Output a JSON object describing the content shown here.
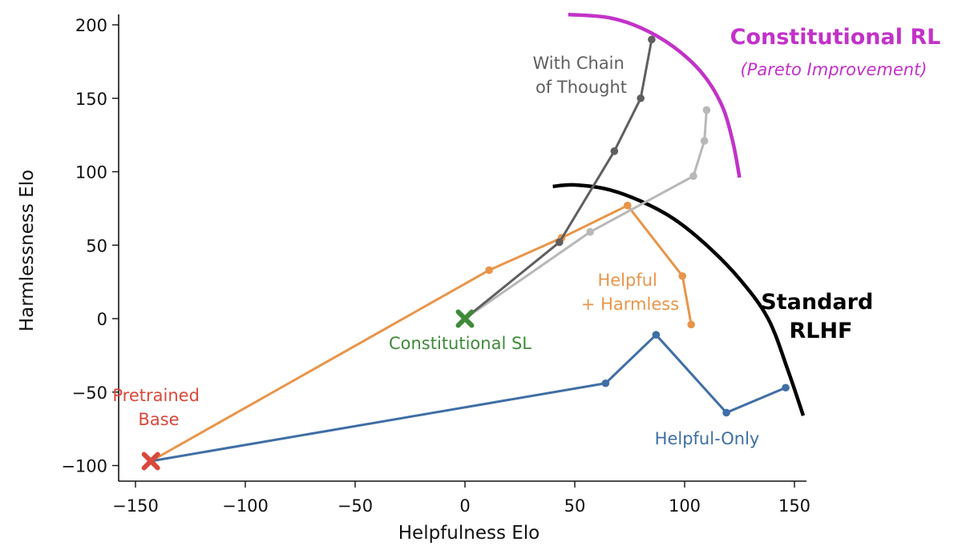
{
  "chart_data": {
    "type": "line",
    "xlabel": "Helpfulness Elo",
    "ylabel": "Harmlessness Elo",
    "xlim": [
      -158,
      158
    ],
    "ylim": [
      -110,
      205
    ],
    "x_ticks": [
      -150,
      -100,
      -50,
      0,
      50,
      100,
      150
    ],
    "y_ticks": [
      -100,
      -50,
      0,
      50,
      100,
      150,
      200
    ],
    "x_tick_labels": [
      "−150",
      "−100",
      "−50",
      "0",
      "50",
      "100",
      "150"
    ],
    "y_tick_labels": [
      "−100",
      "−50",
      "0",
      "50",
      "100",
      "150",
      "200"
    ],
    "grid": false,
    "series": [
      {
        "key": "helpful_only",
        "name": "Helpful-Only",
        "color": "#3f6ea5",
        "points": [
          [
            -143,
            -97
          ],
          [
            64,
            -44
          ],
          [
            87,
            -11
          ],
          [
            119,
            -64
          ],
          [
            146,
            -47
          ]
        ]
      },
      {
        "key": "helpful_harmless",
        "name": "Helpful\n+ Harmless",
        "color": "#e8954a",
        "points": [
          [
            -143,
            -97
          ],
          [
            11,
            33
          ],
          [
            44,
            55
          ],
          [
            74,
            77
          ],
          [
            99,
            29
          ],
          [
            103,
            -4
          ]
        ]
      },
      {
        "key": "constitutional_rl",
        "name": "",
        "color": "#b8b8b8",
        "points": [
          [
            0,
            0
          ],
          [
            57,
            59
          ],
          [
            104,
            97
          ],
          [
            109,
            121
          ],
          [
            110,
            142
          ]
        ]
      },
      {
        "key": "chain_of_thought",
        "name": "With Chain\nof Thought",
        "color": "#5f5f5f",
        "points": [
          [
            0,
            0
          ],
          [
            43,
            52
          ],
          [
            68,
            114
          ],
          [
            80,
            150
          ],
          [
            85,
            190
          ]
        ]
      }
    ],
    "markers": [
      {
        "name": "Pretrained\nBase",
        "x": -143,
        "y": -97,
        "color": "#d9483b"
      },
      {
        "name": "Constitutional SL",
        "x": 0,
        "y": 0,
        "color": "#3f8a3a"
      }
    ],
    "frontiers": [
      {
        "name": "Standard\nRLHF",
        "color": "#000000",
        "points": [
          [
            40,
            90
          ],
          [
            50,
            91
          ],
          [
            65,
            88
          ],
          [
            80,
            80
          ],
          [
            95,
            68
          ],
          [
            110,
            50
          ],
          [
            125,
            27
          ],
          [
            138,
            0
          ],
          [
            147,
            -35
          ],
          [
            154,
            -66
          ]
        ]
      },
      {
        "name": "Constitutional RL",
        "subtitle": "(Pareto Improvement)",
        "color": "#c232c8",
        "points": [
          [
            47,
            207
          ],
          [
            65,
            205
          ],
          [
            80,
            198
          ],
          [
            95,
            185
          ],
          [
            108,
            167
          ],
          [
            117,
            145
          ],
          [
            122,
            120
          ],
          [
            125,
            96
          ]
        ]
      }
    ]
  }
}
